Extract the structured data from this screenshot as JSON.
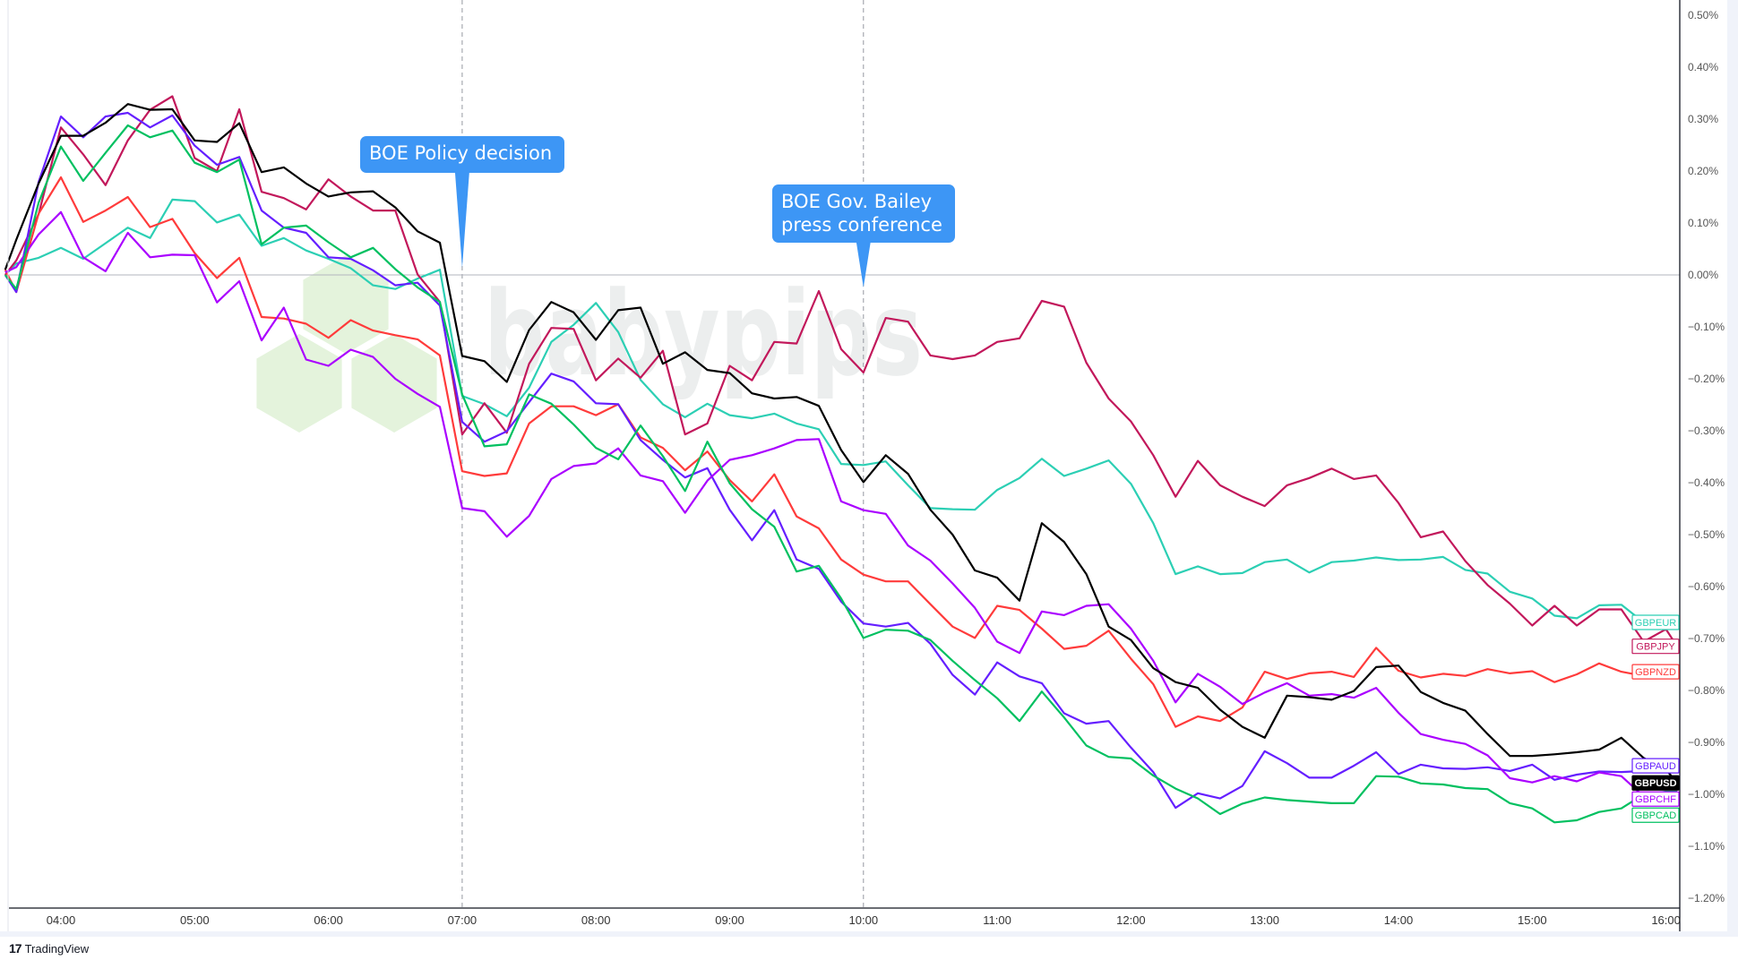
{
  "chart_data": {
    "type": "line",
    "title": "",
    "xlabel": "",
    "ylabel": "",
    "x_ticks": [
      "04:00",
      "05:00",
      "06:00",
      "07:00",
      "08:00",
      "09:00",
      "10:00",
      "11:00",
      "12:00",
      "13:00",
      "14:00",
      "15:00",
      "16:00"
    ],
    "y_ticks": [
      "0.50%",
      "0.40%",
      "0.30%",
      "0.20%",
      "0.10%",
      "0.00%",
      "−0.10%",
      "−0.20%",
      "−0.30%",
      "−0.40%",
      "−0.50%",
      "−0.60%",
      "−0.70%",
      "−0.80%",
      "−0.90%",
      "−1.00%",
      "−1.10%",
      "−1.20%"
    ],
    "ylim": [
      -1.2,
      0.5
    ],
    "y_unit": "%",
    "grid": false,
    "zero_line": true,
    "legend": "series labels at right end",
    "x": [
      "03:35",
      "03:40",
      "03:50",
      "04:00",
      "04:10",
      "04:20",
      "04:30",
      "04:40",
      "04:50",
      "05:00",
      "05:10",
      "05:20",
      "05:30",
      "05:40",
      "05:50",
      "06:00",
      "06:10",
      "06:20",
      "06:30",
      "06:40",
      "06:50",
      "07:00",
      "07:10",
      "07:20",
      "07:30",
      "07:40",
      "07:50",
      "08:00",
      "08:10",
      "08:20",
      "08:30",
      "08:40",
      "08:50",
      "09:00",
      "09:10",
      "09:20",
      "09:30",
      "09:40",
      "09:50",
      "10:00",
      "10:10",
      "10:20",
      "10:30",
      "10:40",
      "10:50",
      "11:00",
      "11:10",
      "11:20",
      "11:30",
      "11:40",
      "11:50",
      "12:00",
      "12:10",
      "12:20",
      "12:30",
      "12:40",
      "12:50",
      "13:00",
      "13:10",
      "13:20",
      "13:30",
      "13:40",
      "13:50",
      "14:00",
      "14:10",
      "14:20",
      "14:30",
      "14:40",
      "14:50",
      "15:00",
      "15:10",
      "15:20",
      "15:30",
      "15:40",
      "15:50",
      "16:00",
      "16:05"
    ],
    "series": [
      {
        "name": "GBPEUR",
        "color": "#2ccfb4",
        "values": [
          0.0,
          0.022,
          0.033,
          0.052,
          0.031,
          0.061,
          0.091,
          0.071,
          0.145,
          0.142,
          0.101,
          0.116,
          0.056,
          0.071,
          0.047,
          0.031,
          0.013,
          -0.02,
          -0.027,
          -0.007,
          0.01,
          -0.233,
          -0.249,
          -0.272,
          -0.217,
          -0.129,
          -0.096,
          -0.054,
          -0.11,
          -0.202,
          -0.249,
          -0.274,
          -0.248,
          -0.27,
          -0.276,
          -0.267,
          -0.286,
          -0.297,
          -0.364,
          -0.366,
          -0.359,
          -0.405,
          -0.449,
          -0.451,
          -0.452,
          -0.414,
          -0.391,
          -0.354,
          -0.387,
          -0.373,
          -0.357,
          -0.402,
          -0.478,
          -0.576,
          -0.561,
          -0.576,
          -0.574,
          -0.553,
          -0.548,
          -0.573,
          -0.553,
          -0.55,
          -0.544,
          -0.549,
          -0.548,
          -0.543,
          -0.568,
          -0.575,
          -0.61,
          -0.623,
          -0.656,
          -0.661,
          -0.636,
          -0.635,
          -0.669,
          -0.666,
          -0.669
        ]
      },
      {
        "name": "GBPJPY",
        "color": "#c2185b",
        "values": [
          0.0,
          0.028,
          0.117,
          0.284,
          0.232,
          0.173,
          0.259,
          0.318,
          0.344,
          0.225,
          0.2,
          0.319,
          0.16,
          0.148,
          0.126,
          0.184,
          0.151,
          0.124,
          0.124,
          0.001,
          -0.052,
          -0.307,
          -0.247,
          -0.304,
          -0.171,
          -0.102,
          -0.104,
          -0.203,
          -0.161,
          -0.198,
          -0.146,
          -0.307,
          -0.286,
          -0.175,
          -0.203,
          -0.129,
          -0.132,
          -0.031,
          -0.143,
          -0.188,
          -0.083,
          -0.09,
          -0.155,
          -0.162,
          -0.155,
          -0.129,
          -0.122,
          -0.05,
          -0.061,
          -0.169,
          -0.238,
          -0.282,
          -0.347,
          -0.427,
          -0.358,
          -0.405,
          -0.427,
          -0.445,
          -0.405,
          -0.391,
          -0.373,
          -0.393,
          -0.386,
          -0.439,
          -0.505,
          -0.494,
          -0.551,
          -0.597,
          -0.633,
          -0.675,
          -0.637,
          -0.675,
          -0.644,
          -0.644,
          -0.706,
          -0.682,
          -0.715
        ]
      },
      {
        "name": "GBPNZD",
        "color": "#ff3b3b",
        "values": [
          0.01,
          -0.033,
          0.118,
          0.188,
          0.102,
          0.124,
          0.15,
          0.092,
          0.108,
          0.042,
          -0.006,
          0.033,
          -0.081,
          -0.084,
          -0.094,
          -0.121,
          -0.087,
          -0.107,
          -0.116,
          -0.124,
          -0.155,
          -0.378,
          -0.387,
          -0.382,
          -0.286,
          -0.253,
          -0.253,
          -0.27,
          -0.249,
          -0.313,
          -0.333,
          -0.376,
          -0.34,
          -0.395,
          -0.436,
          -0.384,
          -0.465,
          -0.488,
          -0.548,
          -0.577,
          -0.59,
          -0.59,
          -0.634,
          -0.677,
          -0.699,
          -0.637,
          -0.645,
          -0.681,
          -0.72,
          -0.714,
          -0.685,
          -0.739,
          -0.788,
          -0.87,
          -0.85,
          -0.859,
          -0.833,
          -0.764,
          -0.778,
          -0.767,
          -0.764,
          -0.774,
          -0.718,
          -0.762,
          -0.775,
          -0.768,
          -0.772,
          -0.759,
          -0.767,
          -0.763,
          -0.784,
          -0.769,
          -0.748,
          -0.764,
          -0.772,
          -0.761,
          -0.764
        ]
      },
      {
        "name": "GBPAUD",
        "color": "#651fff",
        "values": [
          0.0,
          -0.033,
          0.179,
          0.305,
          0.265,
          0.305,
          0.312,
          0.284,
          0.307,
          0.249,
          0.212,
          0.227,
          0.124,
          0.091,
          0.081,
          0.034,
          0.031,
          0.009,
          -0.02,
          -0.015,
          -0.059,
          -0.283,
          -0.321,
          -0.301,
          -0.245,
          -0.19,
          -0.205,
          -0.247,
          -0.249,
          -0.318,
          -0.356,
          -0.39,
          -0.372,
          -0.452,
          -0.511,
          -0.453,
          -0.548,
          -0.566,
          -0.629,
          -0.671,
          -0.677,
          -0.67,
          -0.71,
          -0.77,
          -0.808,
          -0.746,
          -0.773,
          -0.786,
          -0.844,
          -0.864,
          -0.859,
          -0.91,
          -0.957,
          -1.026,
          -0.998,
          -1.008,
          -0.984,
          -0.917,
          -0.94,
          -0.968,
          -0.968,
          -0.945,
          -0.919,
          -0.961,
          -0.943,
          -0.95,
          -0.951,
          -0.948,
          -0.955,
          -0.943,
          -0.972,
          -0.962,
          -0.956,
          -0.957,
          -0.955,
          -0.946,
          -0.945
        ]
      },
      {
        "name": "GBPCHF",
        "color": "#aa00ff",
        "values": [
          0.005,
          0.015,
          0.078,
          0.121,
          0.034,
          0.007,
          0.081,
          0.034,
          0.039,
          0.038,
          -0.053,
          -0.012,
          -0.126,
          -0.063,
          -0.163,
          -0.175,
          -0.144,
          -0.158,
          -0.2,
          -0.229,
          -0.254,
          -0.449,
          -0.455,
          -0.504,
          -0.464,
          -0.393,
          -0.368,
          -0.363,
          -0.334,
          -0.386,
          -0.397,
          -0.458,
          -0.396,
          -0.356,
          -0.347,
          -0.334,
          -0.318,
          -0.316,
          -0.436,
          -0.453,
          -0.46,
          -0.521,
          -0.55,
          -0.594,
          -0.641,
          -0.706,
          -0.728,
          -0.648,
          -0.655,
          -0.637,
          -0.634,
          -0.681,
          -0.743,
          -0.823,
          -0.768,
          -0.793,
          -0.826,
          -0.804,
          -0.786,
          -0.81,
          -0.807,
          -0.814,
          -0.795,
          -0.843,
          -0.884,
          -0.895,
          -0.903,
          -0.925,
          -0.969,
          -0.977,
          -0.965,
          -0.975,
          -0.958,
          -0.965,
          -1.004,
          -0.995,
          -0.995
        ]
      },
      {
        "name": "GBPUSD",
        "color": "#000000",
        "values": [
          0.01,
          0.068,
          0.176,
          0.268,
          0.268,
          0.293,
          0.329,
          0.318,
          0.319,
          0.259,
          0.256,
          0.292,
          0.198,
          0.207,
          0.176,
          0.151,
          0.159,
          0.161,
          0.13,
          0.084,
          0.062,
          -0.156,
          -0.166,
          -0.206,
          -0.106,
          -0.052,
          -0.072,
          -0.125,
          -0.068,
          -0.063,
          -0.171,
          -0.149,
          -0.183,
          -0.189,
          -0.228,
          -0.238,
          -0.235,
          -0.252,
          -0.337,
          -0.399,
          -0.347,
          -0.383,
          -0.452,
          -0.5,
          -0.569,
          -0.583,
          -0.627,
          -0.478,
          -0.514,
          -0.576,
          -0.677,
          -0.703,
          -0.757,
          -0.784,
          -0.795,
          -0.837,
          -0.87,
          -0.891,
          -0.81,
          -0.813,
          -0.818,
          -0.801,
          -0.755,
          -0.752,
          -0.803,
          -0.824,
          -0.839,
          -0.884,
          -0.926,
          -0.926,
          -0.923,
          -0.919,
          -0.914,
          -0.891,
          -0.93,
          -0.952,
          -0.978
        ]
      },
      {
        "name": "GBPCAD",
        "color": "#00c060",
        "values": [
          0.0,
          -0.027,
          0.139,
          0.247,
          0.181,
          0.235,
          0.288,
          0.265,
          0.278,
          0.216,
          0.198,
          0.222,
          0.059,
          0.091,
          0.095,
          0.063,
          0.034,
          0.052,
          0.011,
          -0.024,
          -0.052,
          -0.23,
          -0.33,
          -0.326,
          -0.23,
          -0.248,
          -0.288,
          -0.333,
          -0.355,
          -0.29,
          -0.349,
          -0.416,
          -0.321,
          -0.401,
          -0.451,
          -0.485,
          -0.571,
          -0.56,
          -0.623,
          -0.699,
          -0.683,
          -0.685,
          -0.703,
          -0.743,
          -0.78,
          -0.815,
          -0.859,
          -0.802,
          -0.852,
          -0.906,
          -0.928,
          -0.931,
          -0.964,
          -0.989,
          -1.008,
          -1.038,
          -1.018,
          -1.006,
          -1.011,
          -1.014,
          -1.017,
          -1.017,
          -0.965,
          -0.966,
          -0.979,
          -0.981,
          -0.988,
          -0.99,
          -1.017,
          -1.027,
          -1.054,
          -1.05,
          -1.034,
          -1.027,
          -1.0,
          -0.995,
          -0.995
        ]
      }
    ],
    "event_lines": [
      "07:00",
      "10:00"
    ],
    "annotations": [
      {
        "time": "07:00",
        "lines": [
          "BOE Policy decision"
        ]
      },
      {
        "time": "10:00",
        "lines": [
          "BOE Gov. Bailey",
          "press conference"
        ]
      }
    ]
  },
  "colors": {
    "annotation": "#3d96f5",
    "axis": "#131722",
    "zero_line": "#b2b5be",
    "event_line": "#9598a1"
  },
  "watermark": {
    "text": "babypips",
    "hex_color": "#e4f3dc",
    "text_color": "#eceeee"
  },
  "branding": {
    "logo": "17",
    "name": "TradingView"
  }
}
